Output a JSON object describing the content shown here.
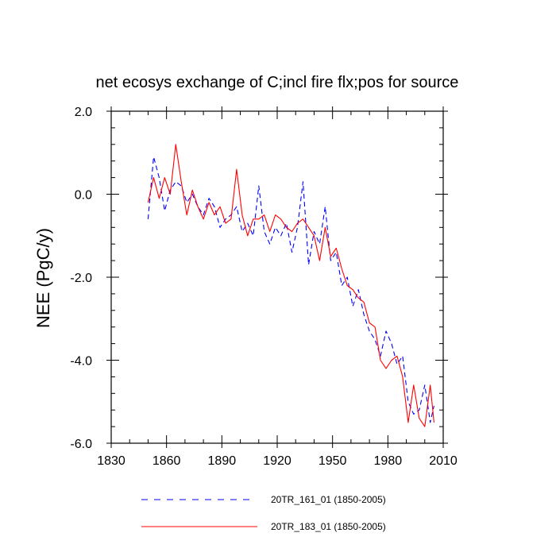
{
  "chart_data": {
    "type": "line",
    "title": "net ecosys exchange of C;incl fire flx;pos for source",
    "xlabel": "",
    "ylabel": "NEE  (PgC/y)",
    "xlim": [
      1830,
      2010
    ],
    "ylim": [
      -6.0,
      2.0
    ],
    "xticks": [
      1830,
      1860,
      1890,
      1920,
      1950,
      1980,
      2010
    ],
    "xtick_labels": [
      "1830",
      "1860",
      "1890",
      "1920",
      "1950",
      "1980",
      "2010"
    ],
    "yticks": [
      -6.0,
      -4.0,
      -2.0,
      0.0,
      2.0
    ],
    "ytick_labels": [
      "-6.0",
      "-4.0",
      "-2.0",
      "0.0",
      "2.0"
    ],
    "grid": false,
    "legend_position": "bottom",
    "x": [
      1850,
      1853,
      1856,
      1859,
      1862,
      1865,
      1868,
      1871,
      1874,
      1877,
      1880,
      1883,
      1886,
      1889,
      1892,
      1895,
      1898,
      1901,
      1904,
      1907,
      1910,
      1913,
      1916,
      1919,
      1922,
      1925,
      1928,
      1931,
      1934,
      1937,
      1940,
      1943,
      1946,
      1949,
      1952,
      1955,
      1958,
      1961,
      1964,
      1967,
      1970,
      1973,
      1976,
      1979,
      1982,
      1985,
      1988,
      1991,
      1994,
      1997,
      2000,
      2003,
      2005
    ],
    "series": [
      {
        "name": "20TR_161_01 (1850-2005)",
        "color": "#0000ff",
        "dash": "dashed",
        "values": [
          -0.6,
          0.9,
          0.4,
          -0.4,
          0.1,
          0.3,
          0.2,
          -0.2,
          0.0,
          -0.3,
          -0.5,
          -0.1,
          -0.3,
          -0.8,
          -0.6,
          -0.5,
          -0.3,
          -0.9,
          -0.7,
          -1.0,
          0.2,
          -0.9,
          -1.2,
          -0.8,
          -1.0,
          -0.7,
          -1.4,
          -0.8,
          0.3,
          -1.7,
          -0.9,
          -1.2,
          -0.3,
          -1.6,
          -1.4,
          -2.2,
          -2.0,
          -2.7,
          -2.3,
          -2.9,
          -3.3,
          -3.5,
          -3.9,
          -3.3,
          -3.6,
          -4.1,
          -3.9,
          -5.0,
          -5.3,
          -5.2,
          -4.6,
          -5.5,
          -5.1
        ]
      },
      {
        "name": "20TR_183_01 (1850-2005)",
        "color": "#ff0000",
        "dash": "solid",
        "values": [
          -0.2,
          0.4,
          -0.1,
          0.4,
          0.0,
          1.2,
          0.3,
          -0.5,
          0.1,
          -0.3,
          -0.6,
          -0.2,
          -0.5,
          -0.3,
          -0.7,
          -0.6,
          0.6,
          -0.5,
          -1.0,
          -0.6,
          -0.6,
          -0.5,
          -0.9,
          -0.5,
          -0.6,
          -0.8,
          -0.9,
          -0.7,
          -0.6,
          -0.8,
          -1.0,
          -1.6,
          -0.8,
          -1.5,
          -1.3,
          -1.8,
          -2.2,
          -2.3,
          -2.5,
          -2.6,
          -3.1,
          -3.2,
          -4.0,
          -4.2,
          -4.0,
          -3.9,
          -4.4,
          -5.5,
          -4.6,
          -5.4,
          -5.6,
          -4.6,
          -5.5
        ]
      }
    ]
  }
}
